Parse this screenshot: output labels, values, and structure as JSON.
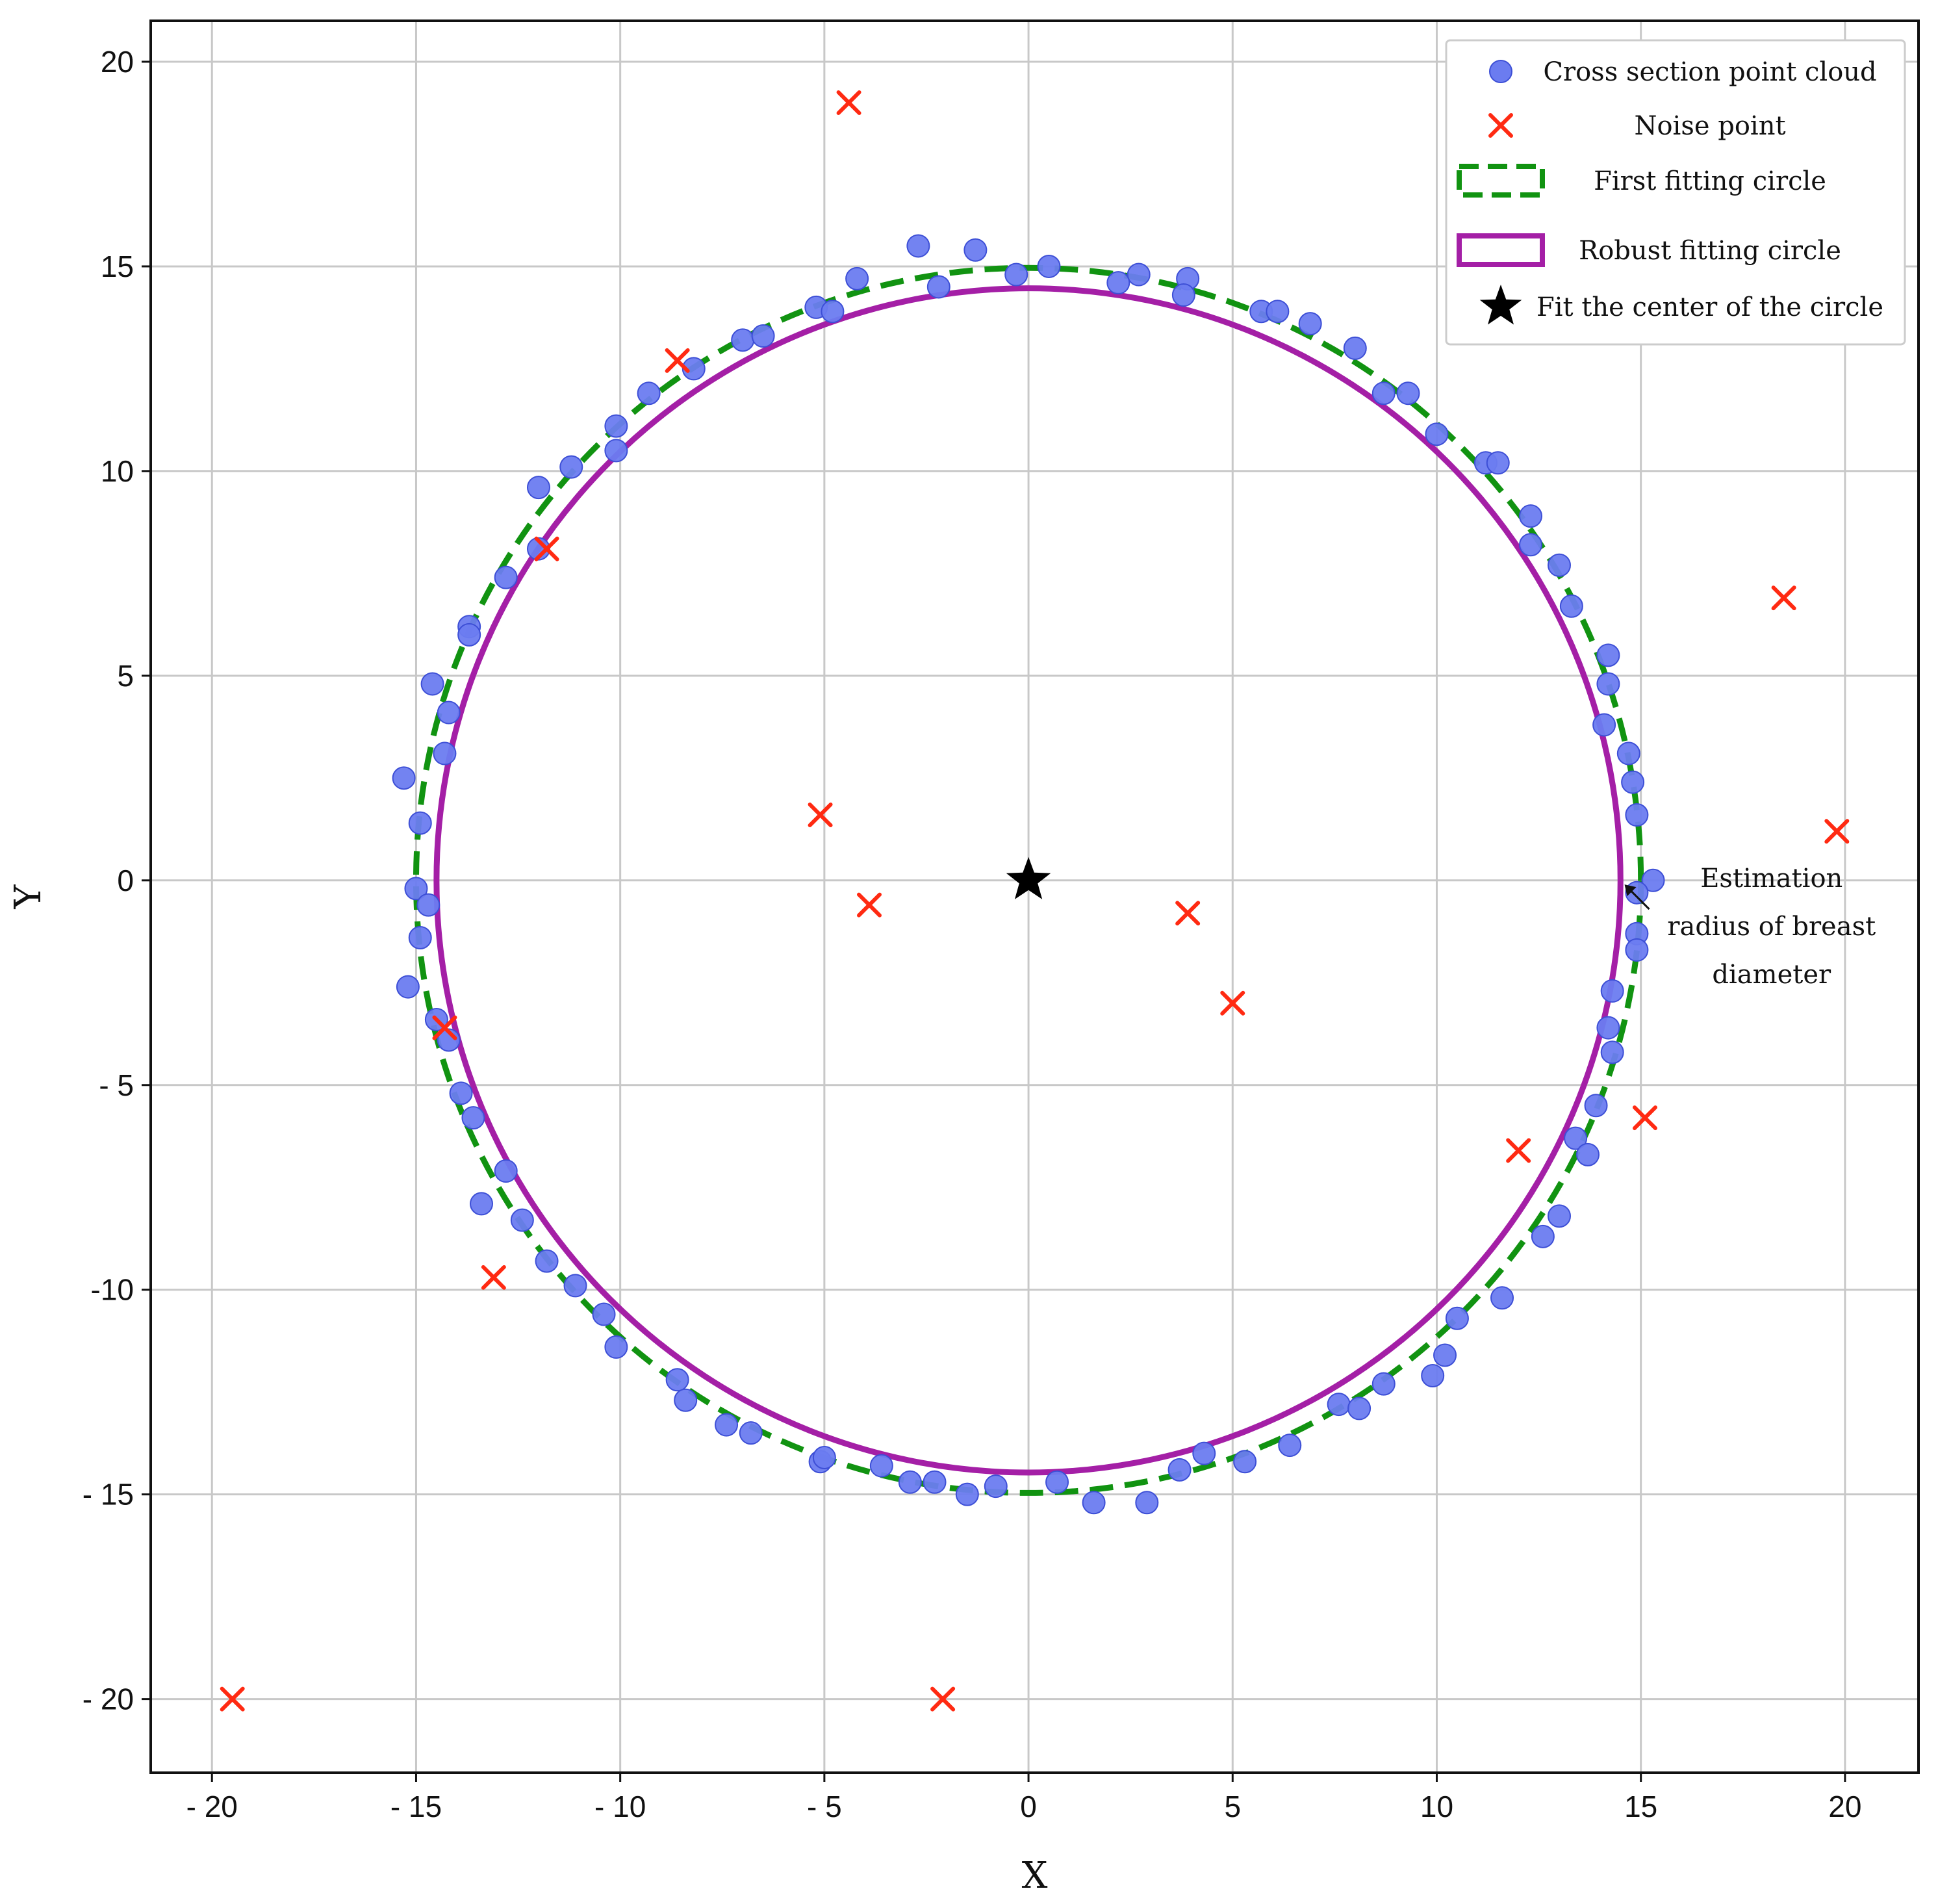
{
  "chart_data": {
    "type": "scatter",
    "title": "",
    "xlabel": "X",
    "ylabel": "Y",
    "xlim": [
      -21.5,
      21.8
    ],
    "ylim": [
      -21.8,
      21.0
    ],
    "xticks": [
      -20,
      -15,
      -10,
      -5,
      0,
      5,
      10,
      15,
      20
    ],
    "yticks": [
      -20,
      -15,
      -10,
      -5,
      0,
      5,
      10,
      15,
      20
    ],
    "xtick_labels": [
      "- 20",
      "- 15",
      "- 10",
      "- 5",
      "0",
      "5",
      "10",
      "15",
      "20"
    ],
    "ytick_labels": [
      "- 20",
      "- 15",
      "-10",
      "- 5",
      "0",
      "5",
      "10",
      "15",
      "20"
    ],
    "grid": true,
    "legend_position": "top-right",
    "colors": {
      "points": "#6b7cf0",
      "points_edge": "#3d4fd6",
      "noise": "#ff2a12",
      "first_circle": "#119311",
      "robust_circle": "#a41fa6",
      "center": "#000000"
    },
    "series": [
      {
        "name": "Cross section point cloud",
        "kind": "points",
        "points": [
          [
            -2.7,
            15.5
          ],
          [
            -1.3,
            15.4
          ],
          [
            0.5,
            15.0
          ],
          [
            -0.3,
            14.8
          ],
          [
            2.7,
            14.8
          ],
          [
            2.2,
            14.6
          ],
          [
            3.9,
            14.7
          ],
          [
            3.8,
            14.3
          ],
          [
            -4.2,
            14.7
          ],
          [
            -2.2,
            14.5
          ],
          [
            -5.2,
            14.0
          ],
          [
            -4.8,
            13.9
          ],
          [
            5.7,
            13.9
          ],
          [
            6.1,
            13.9
          ],
          [
            6.9,
            13.6
          ],
          [
            -7.0,
            13.2
          ],
          [
            -6.5,
            13.3
          ],
          [
            8.0,
            13.0
          ],
          [
            -8.2,
            12.5
          ],
          [
            -9.3,
            11.9
          ],
          [
            8.7,
            11.9
          ],
          [
            9.3,
            11.9
          ],
          [
            -10.1,
            11.1
          ],
          [
            -10.1,
            10.5
          ],
          [
            10.0,
            10.9
          ],
          [
            -11.2,
            10.1
          ],
          [
            11.2,
            10.2
          ],
          [
            11.5,
            10.2
          ],
          [
            -12.0,
            9.6
          ],
          [
            12.3,
            8.9
          ],
          [
            12.3,
            8.2
          ],
          [
            -12.0,
            8.1
          ],
          [
            13.0,
            7.7
          ],
          [
            -12.8,
            7.4
          ],
          [
            13.3,
            6.7
          ],
          [
            -13.7,
            6.2
          ],
          [
            -13.7,
            6.0
          ],
          [
            14.2,
            5.5
          ],
          [
            14.2,
            4.8
          ],
          [
            -14.6,
            4.8
          ],
          [
            -14.2,
            4.1
          ],
          [
            14.1,
            3.8
          ],
          [
            -14.3,
            3.1
          ],
          [
            14.7,
            3.1
          ],
          [
            -15.3,
            2.5
          ],
          [
            14.8,
            2.4
          ],
          [
            14.9,
            1.6
          ],
          [
            -14.9,
            1.4
          ],
          [
            15.3,
            0.0
          ],
          [
            -15.0,
            -0.2
          ],
          [
            -14.7,
            -0.6
          ],
          [
            14.9,
            -0.3
          ],
          [
            14.9,
            -1.3
          ],
          [
            14.9,
            -1.7
          ],
          [
            -14.9,
            -1.4
          ],
          [
            -15.2,
            -2.6
          ],
          [
            14.3,
            -2.7
          ],
          [
            -14.5,
            -3.4
          ],
          [
            14.2,
            -3.6
          ],
          [
            -14.2,
            -3.9
          ],
          [
            14.3,
            -4.2
          ],
          [
            -13.9,
            -5.2
          ],
          [
            -13.6,
            -5.8
          ],
          [
            13.9,
            -5.5
          ],
          [
            13.4,
            -6.3
          ],
          [
            13.7,
            -6.7
          ],
          [
            -12.8,
            -7.1
          ],
          [
            -13.4,
            -7.9
          ],
          [
            13.0,
            -8.2
          ],
          [
            -12.4,
            -8.3
          ],
          [
            12.6,
            -8.7
          ],
          [
            -11.8,
            -9.3
          ],
          [
            -11.1,
            -9.9
          ],
          [
            11.6,
            -10.2
          ],
          [
            -10.4,
            -10.6
          ],
          [
            10.5,
            -10.7
          ],
          [
            -10.1,
            -11.4
          ],
          [
            10.2,
            -11.6
          ],
          [
            9.9,
            -12.1
          ],
          [
            -8.6,
            -12.2
          ],
          [
            8.7,
            -12.3
          ],
          [
            -8.4,
            -12.7
          ],
          [
            7.6,
            -12.8
          ],
          [
            8.1,
            -12.9
          ],
          [
            -7.4,
            -13.3
          ],
          [
            -6.8,
            -13.5
          ],
          [
            6.4,
            -13.8
          ],
          [
            -5.1,
            -14.2
          ],
          [
            -5.0,
            -14.1
          ],
          [
            4.3,
            -14.0
          ],
          [
            5.3,
            -14.2
          ],
          [
            -3.6,
            -14.3
          ],
          [
            3.7,
            -14.4
          ],
          [
            -2.9,
            -14.7
          ],
          [
            -2.3,
            -14.7
          ],
          [
            -0.8,
            -14.8
          ],
          [
            0.7,
            -14.7
          ],
          [
            -1.5,
            -15.0
          ],
          [
            1.6,
            -15.2
          ],
          [
            2.9,
            -15.2
          ]
        ]
      },
      {
        "name": "Noise point",
        "kind": "x",
        "points": [
          [
            -4.4,
            19.0
          ],
          [
            -8.6,
            12.7
          ],
          [
            -11.8,
            8.1
          ],
          [
            18.5,
            6.9
          ],
          [
            -5.1,
            1.6
          ],
          [
            19.8,
            1.2
          ],
          [
            -3.9,
            -0.6
          ],
          [
            3.9,
            -0.8
          ],
          [
            5.0,
            -3.0
          ],
          [
            -14.3,
            -3.6
          ],
          [
            15.1,
            -5.8
          ],
          [
            12.0,
            -6.6
          ],
          [
            -13.1,
            -9.7
          ],
          [
            -19.5,
            -20.0
          ],
          [
            -2.1,
            -20.0
          ]
        ]
      },
      {
        "name": "First fitting circle",
        "kind": "circle",
        "center": [
          0.0,
          0.0
        ],
        "radius": 15.0,
        "style": "dashed"
      },
      {
        "name": "Robust fitting circle",
        "kind": "circle",
        "center": [
          0.0,
          0.0
        ],
        "radius": 14.5,
        "style": "solid"
      },
      {
        "name": "Fit the center of the circle",
        "kind": "star",
        "points": [
          [
            0.0,
            0.0
          ]
        ]
      }
    ],
    "annotations": [
      {
        "lines": [
          "Estimation",
          "radius of breast",
          "diameter"
        ],
        "point_to": [
          14.6,
          -0.1
        ],
        "text_anchor": [
          18.2,
          -0.8
        ]
      }
    ]
  }
}
